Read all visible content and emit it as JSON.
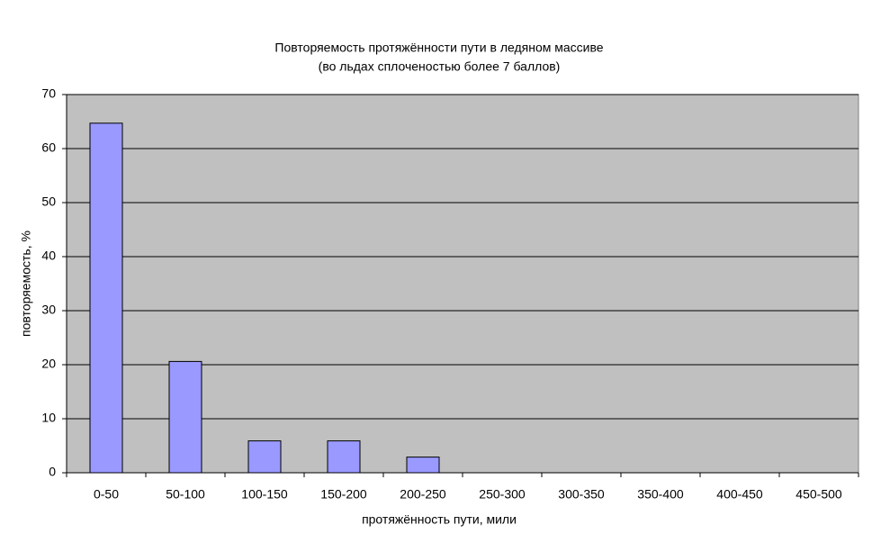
{
  "chart_data": {
    "type": "bar",
    "title": "Повторяемость протяжённости пути в ледяном массиве",
    "subtitle": "(во льдах сплоченостью более 7 баллов)",
    "x_label": "протяжённость пути, мили",
    "y_label": "повторяемость, %",
    "categories": [
      "0-50",
      "50-100",
      "100-150",
      "150-200",
      "200-250",
      "250-300",
      "300-350",
      "350-400",
      "400-450",
      "450-500"
    ],
    "values": [
      64.7,
      20.6,
      5.9,
      5.9,
      2.9,
      0,
      0,
      0,
      0,
      0
    ],
    "color": "#9999ff",
    "ylim": [
      0,
      70
    ],
    "yticks": [
      0,
      10,
      20,
      30,
      40,
      50,
      60,
      70
    ],
    "grid": true
  }
}
